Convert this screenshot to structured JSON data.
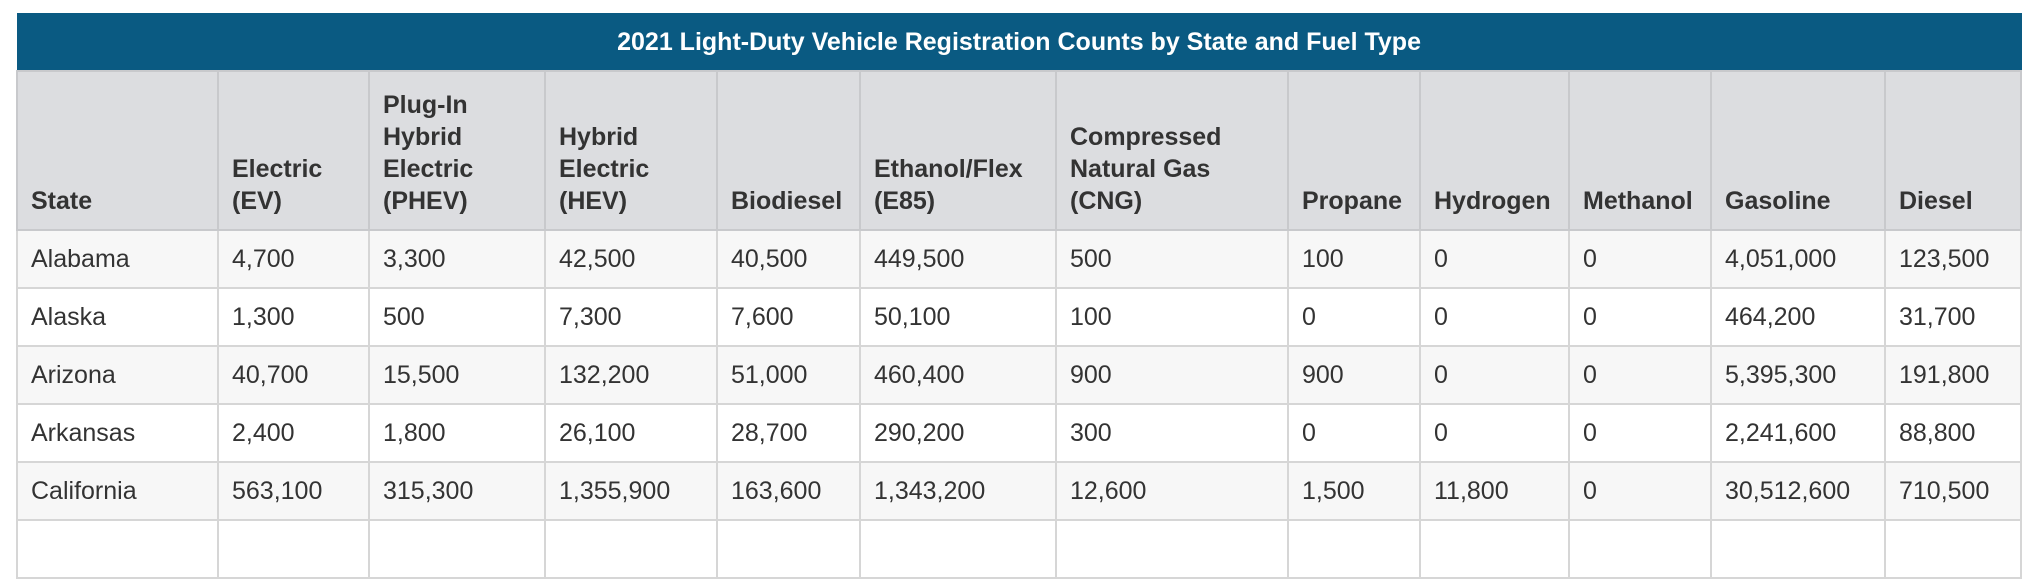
{
  "table": {
    "title": "2021 Light-Duty Vehicle Registration Counts by State and Fuel Type",
    "columns": [
      [
        "State"
      ],
      [
        "Electric",
        "(EV)"
      ],
      [
        "Plug-In",
        "Hybrid",
        "Electric",
        "(PHEV)"
      ],
      [
        "Hybrid",
        "Electric",
        "(HEV)"
      ],
      [
        "Biodiesel"
      ],
      [
        "Ethanol/Flex",
        "(E85)"
      ],
      [
        "Compressed",
        "Natural Gas",
        "(CNG)"
      ],
      [
        "Propane"
      ],
      [
        "Hydrogen"
      ],
      [
        "Methanol"
      ],
      [
        "Gasoline"
      ],
      [
        "Diesel"
      ]
    ],
    "rows": [
      [
        "Alabama",
        "4,700",
        "3,300",
        "42,500",
        "40,500",
        "449,500",
        "500",
        "100",
        "0",
        "0",
        "4,051,000",
        "123,500"
      ],
      [
        "Alaska",
        "1,300",
        "500",
        "7,300",
        "7,600",
        "50,100",
        "100",
        "0",
        "0",
        "0",
        "464,200",
        "31,700"
      ],
      [
        "Arizona",
        "40,700",
        "15,500",
        "132,200",
        "51,000",
        "460,400",
        "900",
        "900",
        "0",
        "0",
        "5,395,300",
        "191,800"
      ],
      [
        "Arkansas",
        "2,400",
        "1,800",
        "26,100",
        "28,700",
        "290,200",
        "300",
        "0",
        "0",
        "0",
        "2,241,600",
        "88,800"
      ],
      [
        "California",
        "563,100",
        "315,300",
        "1,355,900",
        "163,600",
        "1,343,200",
        "12,600",
        "1,500",
        "11,800",
        "0",
        "30,512,600",
        "710,500"
      ],
      [
        "",
        "",
        "",
        "",
        "",
        "",
        "",
        "",
        "",
        "",
        "",
        ""
      ]
    ]
  }
}
